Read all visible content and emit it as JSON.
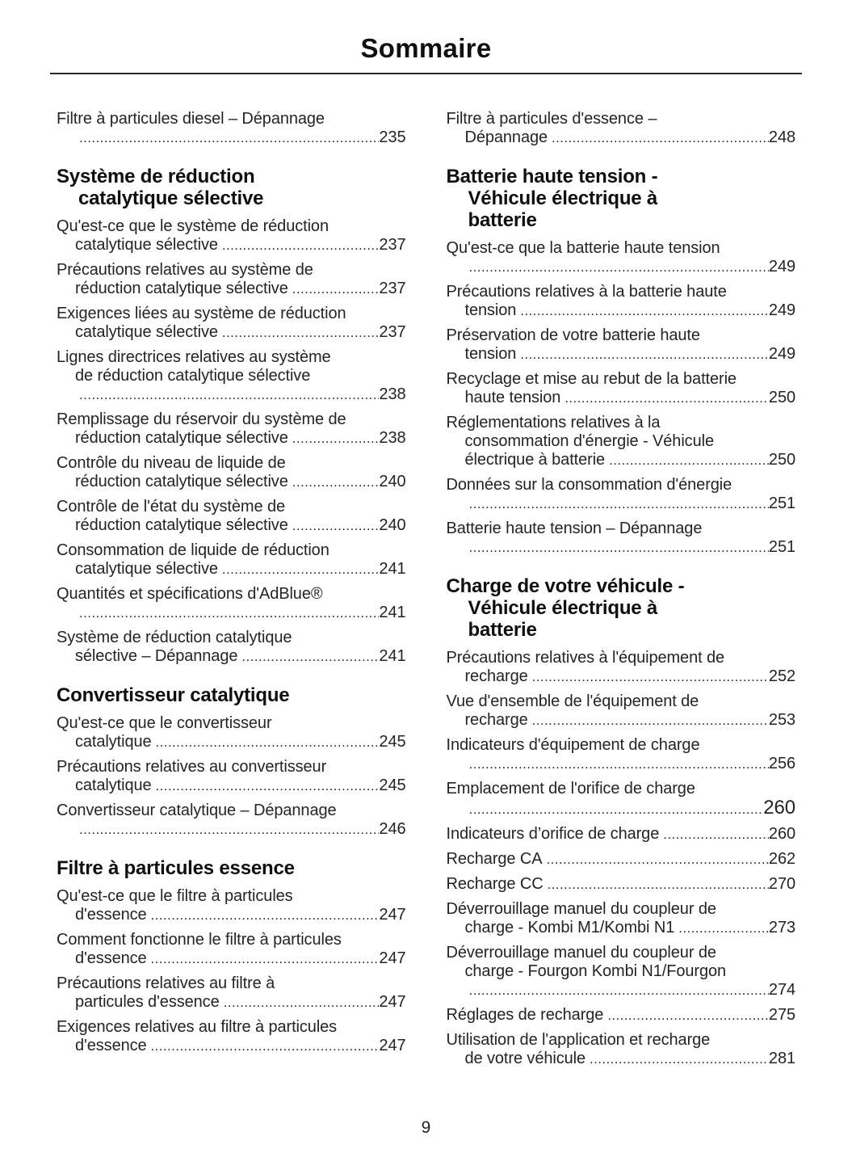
{
  "title": "Sommaire",
  "page_number": "9",
  "columns": [
    {
      "blocks": [
        {
          "type": "entry",
          "pre_lines": [
            "Filtre à particules diesel – Dépannage"
          ],
          "tail": "",
          "page": "235"
        },
        {
          "type": "heading",
          "lines": [
            "Système de réduction",
            "catalytique sélective"
          ]
        },
        {
          "type": "entry",
          "pre_lines": [
            "Qu'est-ce que le système de réduction"
          ],
          "tail": "catalytique sélective",
          "page": "237"
        },
        {
          "type": "entry",
          "pre_lines": [
            "Précautions relatives au système de"
          ],
          "tail": "réduction catalytique sélective",
          "page": "237"
        },
        {
          "type": "entry",
          "pre_lines": [
            "Exigences liées au système de réduction"
          ],
          "tail": "catalytique sélective",
          "page": "237"
        },
        {
          "type": "entry",
          "pre_lines": [
            "Lignes directrices relatives au système",
            "de réduction catalytique sélective"
          ],
          "tail": "",
          "page": "238"
        },
        {
          "type": "entry",
          "pre_lines": [
            "Remplissage du réservoir du système de"
          ],
          "tail": "réduction catalytique sélective",
          "page": "238"
        },
        {
          "type": "entry",
          "pre_lines": [
            "Contrôle du niveau de liquide de"
          ],
          "tail": "réduction catalytique sélective",
          "page": "240"
        },
        {
          "type": "entry",
          "pre_lines": [
            "Contrôle de l'état du système de"
          ],
          "tail": "réduction catalytique sélective",
          "page": "240"
        },
        {
          "type": "entry",
          "pre_lines": [
            "Consommation de liquide de réduction"
          ],
          "tail": "catalytique sélective",
          "page": "241"
        },
        {
          "type": "entry",
          "pre_lines": [
            "Quantités et spécifications d'AdBlue®"
          ],
          "tail": "",
          "page": "241"
        },
        {
          "type": "entry",
          "pre_lines": [
            "Système de réduction catalytique"
          ],
          "tail": "sélective – Dépannage",
          "page": "241"
        },
        {
          "type": "heading",
          "lines": [
            "Convertisseur catalytique"
          ]
        },
        {
          "type": "entry",
          "pre_lines": [
            "Qu'est-ce que le convertisseur"
          ],
          "tail": "catalytique",
          "page": "245"
        },
        {
          "type": "entry",
          "pre_lines": [
            "Précautions relatives au convertisseur"
          ],
          "tail": "catalytique",
          "page": "245"
        },
        {
          "type": "entry",
          "pre_lines": [
            "Convertisseur catalytique – Dépannage"
          ],
          "tail": "",
          "page": "246"
        },
        {
          "type": "heading",
          "lines": [
            "Filtre à particules essence"
          ]
        },
        {
          "type": "entry",
          "pre_lines": [
            "Qu'est-ce que le filtre à particules"
          ],
          "tail": "d'essence",
          "page": "247"
        },
        {
          "type": "entry",
          "pre_lines": [
            "Comment fonctionne le filtre à particules"
          ],
          "tail": "d'essence",
          "page": "247"
        },
        {
          "type": "entry",
          "pre_lines": [
            "Précautions relatives au filtre à"
          ],
          "tail": "particules d'essence",
          "page": "247"
        },
        {
          "type": "entry",
          "pre_lines": [
            "Exigences relatives au filtre à particules"
          ],
          "tail": "d'essence",
          "page": "247"
        }
      ]
    },
    {
      "blocks": [
        {
          "type": "entry",
          "pre_lines": [
            "Filtre à particules d'essence –"
          ],
          "tail": "Dépannage",
          "page": "248"
        },
        {
          "type": "heading",
          "lines": [
            "Batterie haute tension -",
            "Véhicule électrique à",
            "batterie"
          ]
        },
        {
          "type": "entry",
          "pre_lines": [
            "Qu'est-ce que la batterie haute tension"
          ],
          "tail": "",
          "page": "249"
        },
        {
          "type": "entry",
          "pre_lines": [
            "Précautions relatives à la batterie haute"
          ],
          "tail": "tension",
          "page": "249"
        },
        {
          "type": "entry",
          "pre_lines": [
            "Préservation de votre batterie haute"
          ],
          "tail": "tension",
          "page": "249"
        },
        {
          "type": "entry",
          "pre_lines": [
            "Recyclage et mise au rebut de la batterie"
          ],
          "tail": "haute tension",
          "page": "250"
        },
        {
          "type": "entry",
          "pre_lines": [
            "Réglementations relatives à la",
            "consommation d'énergie - Véhicule"
          ],
          "tail": "électrique à batterie",
          "page": "250"
        },
        {
          "type": "entry",
          "pre_lines": [
            "Données sur la consommation d'énergie"
          ],
          "tail": "",
          "page": "251"
        },
        {
          "type": "entry",
          "pre_lines": [
            "Batterie haute tension – Dépannage"
          ],
          "tail": "",
          "page": "251"
        },
        {
          "type": "heading",
          "lines": [
            "Charge de votre véhicule -",
            "Véhicule électrique à",
            "batterie"
          ]
        },
        {
          "type": "entry",
          "pre_lines": [
            "Précautions relatives à l'équipement de"
          ],
          "tail": "recharge",
          "page": "252"
        },
        {
          "type": "entry",
          "pre_lines": [
            "Vue d'ensemble de l'équipement de"
          ],
          "tail": "recharge",
          "page": "253"
        },
        {
          "type": "entry",
          "pre_lines": [
            "Indicateurs d'équipement de charge"
          ],
          "tail": "",
          "page": "256"
        },
        {
          "type": "entry",
          "pre_lines": [
            "Emplacement de l'orifice de charge"
          ],
          "tail": "",
          "page": "260",
          "big_page": true
        },
        {
          "type": "entry",
          "pre_lines": [],
          "tail": "Indicateurs d’orifice de charge",
          "page": "260"
        },
        {
          "type": "entry",
          "pre_lines": [],
          "tail": "Recharge CA",
          "page": "262"
        },
        {
          "type": "entry",
          "pre_lines": [],
          "tail": "Recharge CC",
          "page": "270"
        },
        {
          "type": "entry",
          "pre_lines": [
            "Déverrouillage manuel du coupleur de"
          ],
          "tail": "charge - Kombi M1/Kombi N1",
          "page": "273"
        },
        {
          "type": "entry",
          "pre_lines": [
            "Déverrouillage manuel du coupleur de",
            "charge - Fourgon Kombi N1/Fourgon"
          ],
          "tail": "",
          "page": "274"
        },
        {
          "type": "entry",
          "pre_lines": [],
          "tail": "Réglages de recharge",
          "page": "275"
        },
        {
          "type": "entry",
          "pre_lines": [
            "Utilisation de l'application et recharge"
          ],
          "tail": "de votre véhicule",
          "page": "281"
        }
      ]
    }
  ]
}
